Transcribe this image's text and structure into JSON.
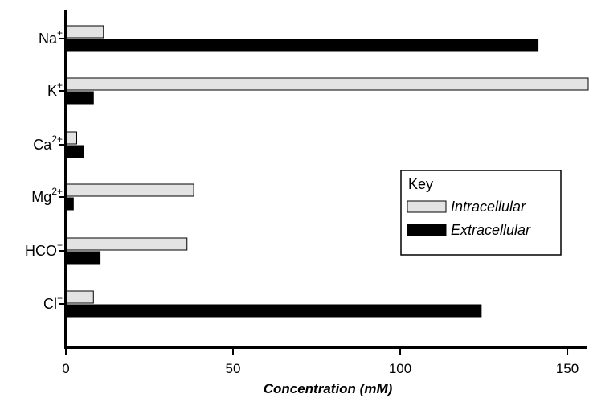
{
  "chart_data": {
    "type": "bar",
    "orientation": "horizontal",
    "categories": [
      {
        "base": "Na",
        "sup": "+"
      },
      {
        "base": "K",
        "sup": "+"
      },
      {
        "base": "Ca",
        "sup": "2+"
      },
      {
        "base": "Mg",
        "sup": "2+"
      },
      {
        "base": "HCO",
        "sup": "−"
      },
      {
        "base": "Cl",
        "sup": "−"
      }
    ],
    "series": [
      {
        "name": "Intracellular",
        "values": [
          11,
          156,
          3,
          38,
          36,
          8
        ],
        "color": "#e3e3e3",
        "border": "#000000"
      },
      {
        "name": "Extracellular",
        "values": [
          141,
          8,
          5,
          2,
          10,
          124
        ],
        "color": "#000000",
        "border": "#000000"
      }
    ],
    "xlabel": "Concentration (mM)",
    "xlim": [
      0,
      156
    ],
    "xticks": [
      0,
      50,
      100,
      150
    ],
    "grid": false,
    "legend": {
      "title": "Key",
      "placement": "right-middle"
    }
  }
}
